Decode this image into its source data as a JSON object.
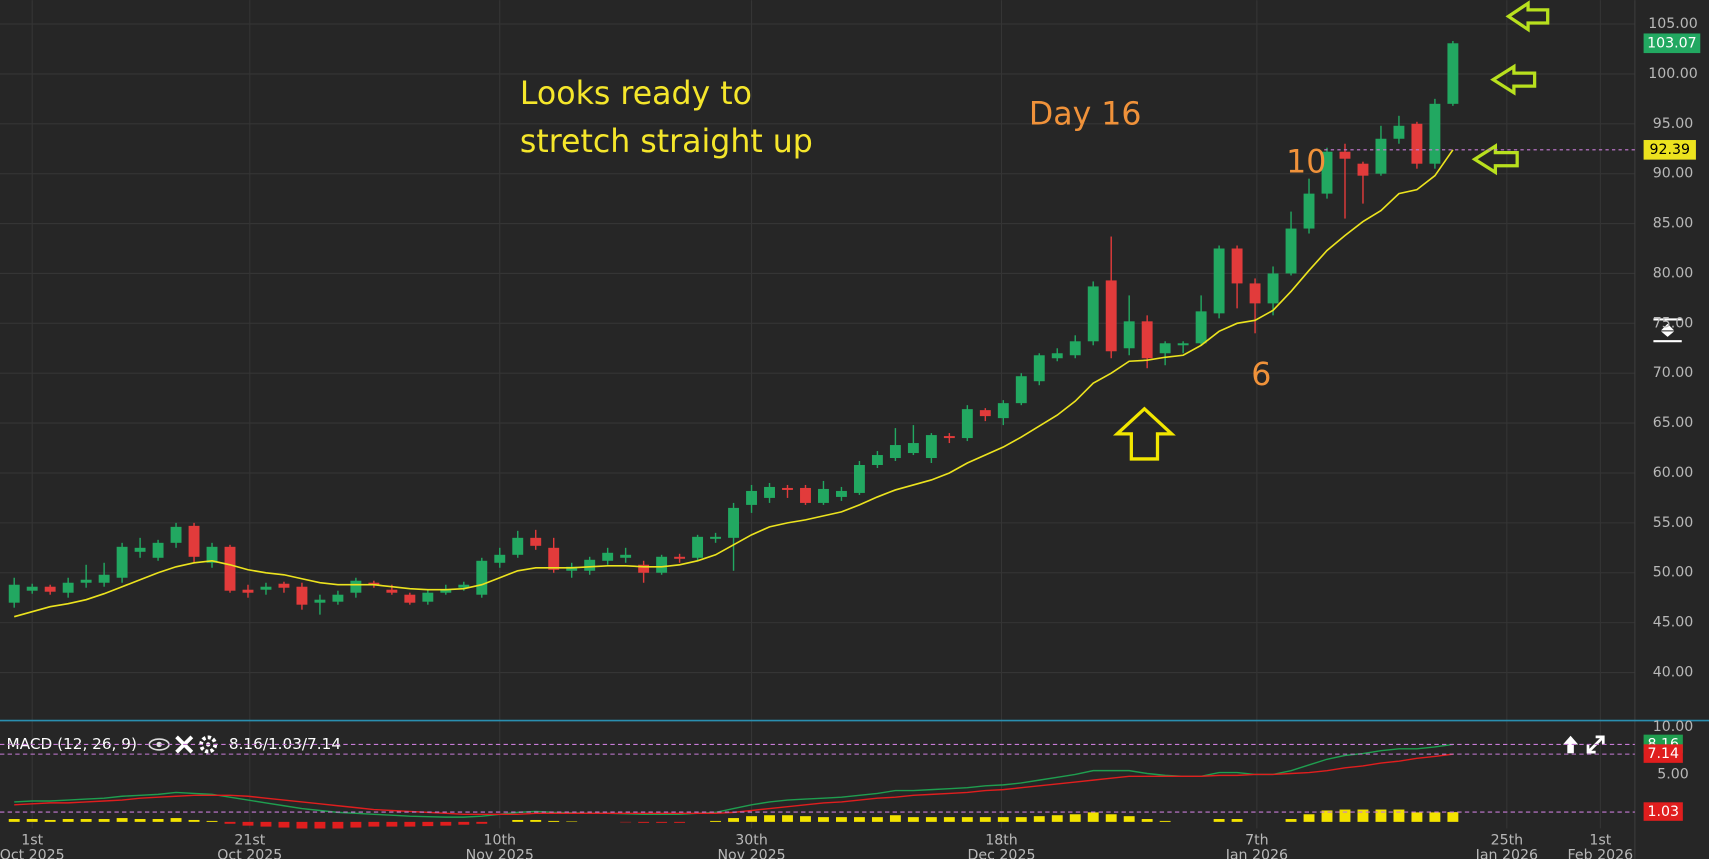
{
  "chart_data": [
    {
      "type": "candlestick",
      "x": [
        0,
        1,
        2,
        3,
        4,
        5,
        6,
        7,
        8,
        9,
        10,
        11,
        12,
        13,
        14,
        15,
        16,
        17,
        18,
        19,
        20,
        21,
        22,
        23,
        24,
        25,
        26,
        27,
        28,
        29,
        30,
        31,
        32,
        33,
        34,
        35,
        36,
        37,
        38,
        39,
        40,
        41,
        42,
        43,
        44,
        45,
        46,
        47,
        48,
        49,
        50,
        51,
        52,
        53,
        54,
        55,
        56,
        57,
        58,
        59,
        60,
        61,
        62,
        63,
        64,
        65,
        66,
        67,
        68,
        69,
        70,
        71,
        72,
        73,
        74,
        75,
        76,
        77,
        78,
        79,
        80
      ],
      "open": [
        47,
        48.2,
        48.6,
        48,
        49,
        49,
        49.5,
        52.1,
        51.5,
        53,
        54.7,
        51,
        52.6,
        48.3,
        48.3,
        48.9,
        48.6,
        47,
        47.1,
        48,
        49,
        48.3,
        47.8,
        47.1,
        48,
        48.5,
        47.8,
        51,
        51.8,
        53.5,
        52.5,
        50.2,
        50.2,
        51.2,
        51.5,
        50.8,
        50,
        51.6,
        51.5,
        53.4,
        53.5,
        56.8,
        57.5,
        58.5,
        58.5,
        57,
        57.6,
        58,
        60.8,
        61.5,
        62,
        61.5,
        63.7,
        63.5,
        66.3,
        65.5,
        67,
        69.2,
        71.5,
        71.8,
        73.2,
        79.3,
        72.5,
        75.2,
        72,
        72.8,
        73,
        76,
        82.5,
        79,
        77,
        80,
        84.5,
        88,
        92.2,
        91,
        90,
        93.5,
        95,
        91,
        97
      ],
      "high": [
        49.5,
        48.9,
        48.8,
        49.5,
        50.8,
        51,
        53,
        53.5,
        53.3,
        55,
        55,
        53,
        52.8,
        48.8,
        49,
        49.1,
        49,
        47.8,
        48.2,
        49.5,
        49.2,
        48.8,
        48,
        48.3,
        48.8,
        49.1,
        51.5,
        52.5,
        54.2,
        54.3,
        53.5,
        51,
        51.6,
        52.5,
        52.5,
        51.2,
        51.8,
        51.9,
        53.8,
        54,
        57,
        58.8,
        59,
        58.8,
        58.8,
        59.2,
        58.6,
        61.2,
        62.2,
        64.5,
        64.8,
        64,
        64,
        66.8,
        66.5,
        67.3,
        70,
        72,
        72.5,
        73.8,
        79.2,
        83.7,
        77.8,
        75.8,
        73.2,
        73.2,
        77.8,
        82.8,
        82.8,
        79.5,
        80.7,
        86.2,
        89.5,
        92.6,
        93,
        91.2,
        94.8,
        95.8,
        95.2,
        97.5,
        103.3
      ],
      "low": [
        46.5,
        47.9,
        47.8,
        47.5,
        48.5,
        48.6,
        49,
        51.5,
        51.2,
        52.5,
        51,
        50.5,
        48,
        47.5,
        47.8,
        48,
        46.3,
        45.8,
        46.8,
        47.5,
        48.5,
        47.8,
        46.8,
        46.8,
        47.8,
        48.2,
        47.5,
        50.5,
        51.5,
        52.3,
        50,
        49.5,
        49.8,
        50.8,
        51,
        49,
        49.8,
        51,
        51.2,
        53,
        50.2,
        56,
        57,
        57.5,
        56.8,
        56.8,
        57.2,
        57.8,
        60.5,
        61.2,
        61.8,
        61,
        63,
        63.2,
        65.2,
        64.8,
        66.8,
        68.8,
        71.2,
        71.5,
        72.8,
        71.5,
        71.8,
        70.5,
        70.8,
        72,
        72.8,
        75.5,
        76.5,
        74,
        75.8,
        79.8,
        84,
        87.5,
        85.5,
        87,
        89.8,
        93,
        90.5,
        90.5,
        96.8
      ],
      "close": [
        48.8,
        48.6,
        48.1,
        49,
        49.3,
        49.8,
        52.6,
        52.5,
        53,
        54.6,
        51.6,
        52.6,
        48.2,
        48,
        48.6,
        48.5,
        46.8,
        47.3,
        47.8,
        49.2,
        48.8,
        48,
        47,
        48,
        48.3,
        48.8,
        51.2,
        51.8,
        53.5,
        52.7,
        50.3,
        50.6,
        51.3,
        52,
        51.8,
        50,
        51.6,
        51.4,
        53.6,
        53.6,
        56.5,
        58.2,
        58.6,
        58.3,
        57,
        58.4,
        58.2,
        60.8,
        61.8,
        62.8,
        63,
        63.8,
        63.5,
        66.4,
        65.7,
        67,
        69.7,
        71.8,
        72,
        73.2,
        78.7,
        72.2,
        75.2,
        71.5,
        73,
        73,
        76.2,
        82.5,
        79,
        77,
        80,
        84.5,
        88,
        92.2,
        91.5,
        89.8,
        93.5,
        94.8,
        91,
        97,
        103.07
      ],
      "up_color": "#22a861",
      "down_color": "#e23b3b",
      "overlay": {
        "color": "#ece31e",
        "values": [
          45.6,
          46.1,
          46.6,
          46.9,
          47.3,
          47.9,
          48.6,
          49.3,
          50.0,
          50.6,
          51.0,
          51.2,
          50.8,
          50.3,
          50.0,
          49.8,
          49.4,
          49.0,
          48.8,
          48.8,
          48.8,
          48.6,
          48.4,
          48.3,
          48.3,
          48.4,
          48.8,
          49.5,
          50.2,
          50.5,
          50.5,
          50.5,
          50.6,
          50.7,
          50.7,
          50.6,
          50.6,
          50.8,
          51.2,
          51.8,
          52.8,
          53.8,
          54.6,
          55.0,
          55.3,
          55.7,
          56.1,
          56.8,
          57.6,
          58.3,
          58.8,
          59.3,
          60.0,
          61.0,
          61.8,
          62.6,
          63.6,
          64.7,
          65.8,
          67.2,
          69.0,
          70.0,
          71.2,
          71.3,
          71.6,
          71.8,
          72.8,
          74.2,
          75.0,
          75.3,
          76.3,
          78.2,
          80.3,
          82.3,
          83.8,
          85.2,
          86.3,
          88.0,
          88.4,
          89.8,
          92.39
        ]
      },
      "xlim": [
        -0.79,
        90.12
      ],
      "xticks": [
        {
          "value": 1.0,
          "label": "1st",
          "label2": "Oct 2025"
        },
        {
          "value": 13.1,
          "label": "21st",
          "label2": "Oct 2025"
        },
        {
          "value": 27.0,
          "label": "10th",
          "label2": "Nov 2025"
        },
        {
          "value": 41.0,
          "label": "30th",
          "label2": "Nov 2025"
        },
        {
          "value": 54.9,
          "label": "18th",
          "label2": "Dec 2025"
        },
        {
          "value": 69.1,
          "label": "7th",
          "label2": "Jan 2026"
        },
        {
          "value": 83.0,
          "label": "25th",
          "label2": "Jan 2026"
        },
        {
          "value": 88.2,
          "label": "1st",
          "label2": "Feb 2026"
        }
      ],
      "ylim": [
        35.3,
        107.4
      ],
      "yticks": [
        {
          "value": 40,
          "label": "40.00"
        },
        {
          "value": 45,
          "label": "45.00"
        },
        {
          "value": 50,
          "label": "50.00"
        },
        {
          "value": 55,
          "label": "55.00"
        },
        {
          "value": 60,
          "label": "60.00"
        },
        {
          "value": 65,
          "label": "65.00"
        },
        {
          "value": 70,
          "label": "70.00"
        },
        {
          "value": 75,
          "label": "75.00"
        },
        {
          "value": 80,
          "label": "80.00"
        },
        {
          "value": 85,
          "label": "85.00"
        },
        {
          "value": 90,
          "label": "90.00"
        },
        {
          "value": 95,
          "label": "95.00"
        },
        {
          "value": 100,
          "label": "100.00"
        },
        {
          "value": 105,
          "label": "105.00"
        }
      ],
      "grid": true,
      "annotations": [
        {
          "text": "Looks ready to",
          "color": "#f5e62b"
        },
        {
          "text": "stretch straight up",
          "color": "#f5e62b"
        },
        {
          "text": "Day 16",
          "color": "#f0923a"
        },
        {
          "text": "10",
          "color": "#f0923a"
        },
        {
          "text": "6",
          "color": "#f0923a"
        }
      ]
    },
    {
      "type": "macd",
      "title": "MACD (12, 26, 9)",
      "readout": "8.16/1.03/7.14",
      "macd": {
        "color": "#1f9e4f",
        "values": [
          2.1,
          2.2,
          2.2,
          2.3,
          2.4,
          2.5,
          2.7,
          2.8,
          2.9,
          3.1,
          3.0,
          2.9,
          2.6,
          2.3,
          2.0,
          1.7,
          1.4,
          1.2,
          1.0,
          0.9,
          0.8,
          0.7,
          0.6,
          0.55,
          0.5,
          0.5,
          0.6,
          0.8,
          1.0,
          1.1,
          1.0,
          0.95,
          0.9,
          0.9,
          0.85,
          0.8,
          0.8,
          0.8,
          0.9,
          1.0,
          1.4,
          1.8,
          2.1,
          2.3,
          2.4,
          2.5,
          2.6,
          2.8,
          3.0,
          3.3,
          3.3,
          3.4,
          3.5,
          3.6,
          3.8,
          3.9,
          4.1,
          4.4,
          4.7,
          5.0,
          5.4,
          5.4,
          5.4,
          5.1,
          4.9,
          4.8,
          4.8,
          5.2,
          5.2,
          5.0,
          5.0,
          5.4,
          6.0,
          6.6,
          7.0,
          7.2,
          7.5,
          7.7,
          7.7,
          7.9,
          8.16
        ]
      },
      "signal": {
        "color": "#e01e1e",
        "values": [
          1.8,
          1.9,
          2.0,
          2.0,
          2.1,
          2.2,
          2.3,
          2.5,
          2.6,
          2.7,
          2.8,
          2.8,
          2.8,
          2.7,
          2.5,
          2.3,
          2.1,
          1.9,
          1.7,
          1.5,
          1.3,
          1.2,
          1.1,
          1.0,
          0.9,
          0.8,
          0.8,
          0.8,
          0.8,
          0.9,
          0.9,
          0.9,
          0.9,
          0.9,
          0.9,
          0.9,
          0.9,
          0.9,
          0.9,
          0.9,
          1.0,
          1.2,
          1.4,
          1.6,
          1.8,
          2.0,
          2.1,
          2.3,
          2.5,
          2.6,
          2.8,
          2.9,
          3.0,
          3.1,
          3.3,
          3.4,
          3.6,
          3.8,
          4.0,
          4.2,
          4.4,
          4.6,
          4.8,
          4.8,
          4.8,
          4.8,
          4.8,
          4.9,
          4.9,
          5.0,
          5.0,
          5.1,
          5.2,
          5.4,
          5.7,
          5.9,
          6.2,
          6.4,
          6.7,
          6.9,
          7.14
        ]
      },
      "histogram": {
        "positive_color": "#f2e200",
        "negative_color": "#e01e1e",
        "values": [
          0.3,
          0.3,
          0.2,
          0.3,
          0.3,
          0.3,
          0.4,
          0.3,
          0.3,
          0.4,
          0.2,
          0.1,
          -0.2,
          -0.4,
          -0.5,
          -0.6,
          -0.7,
          -0.7,
          -0.7,
          -0.6,
          -0.5,
          -0.5,
          -0.5,
          -0.45,
          -0.4,
          -0.3,
          -0.2,
          0,
          0.2,
          0.2,
          0.1,
          0.05,
          0,
          0,
          -0.05,
          -0.1,
          -0.1,
          -0.1,
          0,
          0.1,
          0.4,
          0.6,
          0.7,
          0.7,
          0.6,
          0.5,
          0.5,
          0.5,
          0.5,
          0.7,
          0.5,
          0.5,
          0.5,
          0.5,
          0.5,
          0.5,
          0.5,
          0.6,
          0.7,
          0.8,
          1.0,
          0.8,
          0.6,
          0.3,
          0.1,
          0,
          0,
          0.3,
          0.3,
          0,
          0,
          0.3,
          0.8,
          1.2,
          1.3,
          1.3,
          1.3,
          1.3,
          1.0,
          1.0,
          1.03
        ]
      },
      "ylim": [
        -0.69,
        10.57
      ],
      "yticks": [
        {
          "value": 10,
          "label": "10.00"
        },
        {
          "value": 5,
          "label": "5.00"
        }
      ]
    }
  ]
}
